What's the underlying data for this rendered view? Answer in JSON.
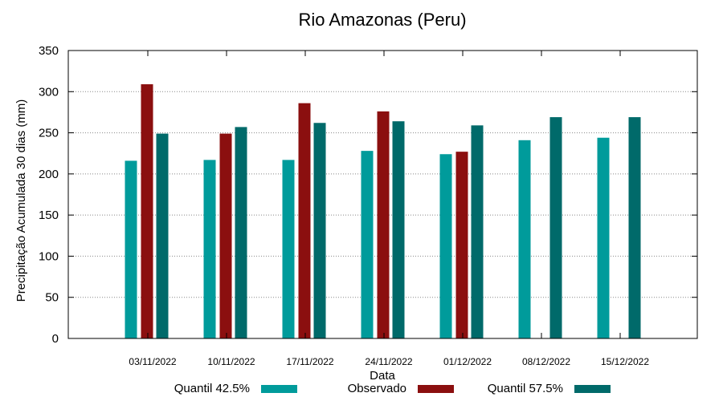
{
  "chart_data": {
    "type": "bar",
    "title": "Rio Amazonas (Peru)",
    "xlabel": "Data",
    "ylabel": "Precipitação Acumulada 30 dias (mm)",
    "ylim": [
      0,
      350
    ],
    "yticks": [
      0,
      50,
      100,
      150,
      200,
      250,
      300,
      350
    ],
    "grid": true,
    "legend_position": "bottom",
    "categories": [
      "03/11/2022",
      "10/11/2022",
      "17/11/2022",
      "24/11/2022",
      "01/12/2022",
      "08/12/2022",
      "15/12/2022"
    ],
    "series": [
      {
        "name": "Quantil 42.5%",
        "color": "#009b9b",
        "values": [
          216,
          217,
          217,
          228,
          224,
          241,
          244
        ]
      },
      {
        "name": "Observado",
        "color": "#8b0f0f",
        "values": [
          309,
          249,
          286,
          276,
          227,
          null,
          null
        ]
      },
      {
        "name": "Quantil 57.5%",
        "color": "#006a6a",
        "values": [
          249,
          257,
          262,
          264,
          259,
          269,
          269
        ]
      }
    ]
  }
}
